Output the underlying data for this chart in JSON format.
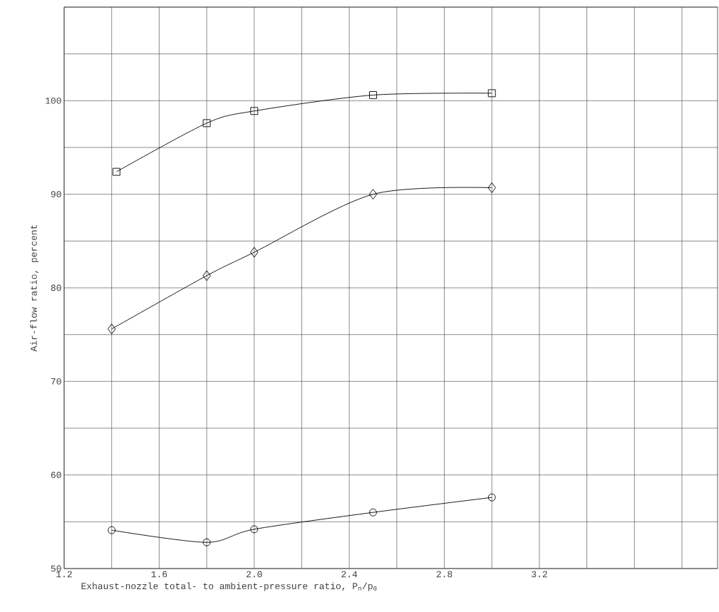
{
  "chart_data": {
    "type": "line",
    "xlabel": "Exhaust-nozzle total- to ambient-pressure ratio, P$_{n}$/p$_{0}$",
    "ylabel": "Air-flow ratio, percent",
    "xlim": [
      1.2,
      3.95
    ],
    "ylim": [
      50,
      110
    ],
    "xticks": [
      1.2,
      {
        "value": 1.4,
        "label": null
      },
      1.6,
      {
        "value": 1.8,
        "label": null
      },
      {
        "value": 2.0,
        "label": "2.0"
      },
      {
        "value": 2.2,
        "label": null
      },
      2.4,
      {
        "value": 2.6,
        "label": null
      },
      2.8,
      {
        "value": 3.0,
        "label": null
      },
      3.2,
      {
        "value": 3.4,
        "label": null
      },
      {
        "value": 3.6,
        "label": null
      },
      {
        "value": 3.8,
        "label": null
      }
    ],
    "yticks": [
      50,
      {
        "value": 55,
        "label": null
      },
      60,
      {
        "value": 65,
        "label": null
      },
      70,
      {
        "value": 75,
        "label": null
      },
      80,
      {
        "value": 85,
        "label": null
      },
      90,
      {
        "value": 95,
        "label": null
      },
      100,
      {
        "value": 105,
        "label": null
      },
      {
        "value": 110,
        "label": null
      }
    ],
    "grid": true,
    "line_style": "solid",
    "series": [
      {
        "color": "#000000",
        "marker": "square",
        "x": [
          1.42,
          1.8,
          2.0,
          2.5,
          3.0
        ],
        "values": [
          92.4,
          97.6,
          98.9,
          100.6,
          100.8
        ]
      },
      {
        "color": "#000000",
        "marker": "diamond",
        "x": [
          1.4,
          1.8,
          2.0,
          2.5,
          3.0
        ],
        "values": [
          75.6,
          81.3,
          83.8,
          90.0,
          90.7
        ]
      },
      {
        "color": "#000000",
        "marker": "circle",
        "x": [
          1.4,
          1.8,
          2.0,
          2.5,
          3.0
        ],
        "values": [
          54.1,
          52.8,
          54.2,
          56.0,
          57.6
        ]
      }
    ]
  }
}
